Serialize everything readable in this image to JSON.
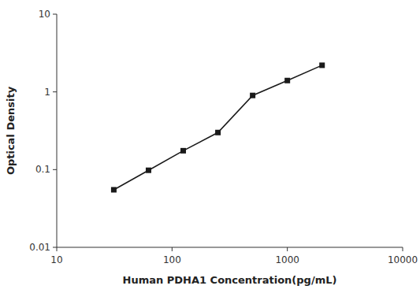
{
  "chart_data": {
    "type": "line",
    "x": [
      31.25,
      62.5,
      125,
      250,
      500,
      1000,
      2000
    ],
    "values": [
      0.055,
      0.098,
      0.175,
      0.3,
      0.9,
      1.4,
      2.2
    ],
    "xlabel": "Human PDHA1 Concentration(pg/mL)",
    "ylabel": "Optical Density",
    "xlim": [
      10,
      10000
    ],
    "ylim": [
      0.01,
      10
    ],
    "xticks": [
      10,
      100,
      1000,
      10000
    ],
    "yticks": [
      0.01,
      0.1,
      1,
      10
    ],
    "log": true,
    "grid": false,
    "color": "#1a1a1a",
    "marker": "square"
  }
}
